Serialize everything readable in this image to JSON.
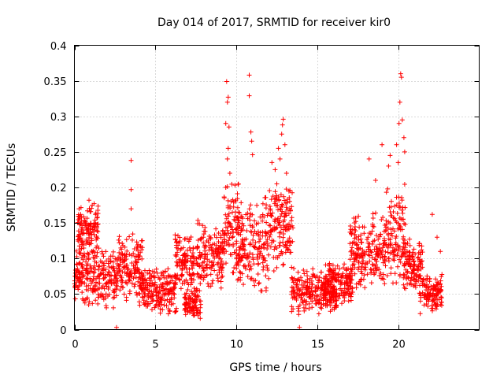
{
  "chart_data": {
    "type": "scatter",
    "title": "Day 014 of 2017, SRMTID for receiver kir0",
    "xlabel": "GPS time / hours",
    "ylabel": "SRMTID / TECUs",
    "xlim": [
      0,
      25
    ],
    "ylim": [
      0,
      0.4
    ],
    "xticks": [
      0,
      5,
      10,
      15,
      20
    ],
    "xtick_labels": [
      "0",
      "5",
      "10",
      "15",
      "20"
    ],
    "yticks": [
      0,
      0.05,
      0.1,
      0.15,
      0.2,
      0.25,
      0.3,
      0.35,
      0.4
    ],
    "ytick_labels": [
      "0",
      "0.05",
      "0.1",
      "0.15",
      "0.2",
      "0.25",
      "0.3",
      "0.35",
      "0.4"
    ],
    "grid": true,
    "marker": "+",
    "color": "#ff0000",
    "data_ranges": [
      {
        "x0": 0.0,
        "x1": 2.7,
        "y0": 0.03,
        "y1": 0.12
      },
      {
        "x0": 0.2,
        "x1": 1.5,
        "y0": 0.1,
        "y1": 0.18
      },
      {
        "x0": 2.7,
        "x1": 4.2,
        "y0": 0.04,
        "y1": 0.14
      },
      {
        "x0": 4.0,
        "x1": 6.3,
        "y0": 0.02,
        "y1": 0.09
      },
      {
        "x0": 6.2,
        "x1": 7.4,
        "y0": 0.04,
        "y1": 0.14
      },
      {
        "x0": 6.8,
        "x1": 7.8,
        "y0": 0.01,
        "y1": 0.06
      },
      {
        "x0": 7.5,
        "x1": 9.2,
        "y0": 0.05,
        "y1": 0.16
      },
      {
        "x0": 9.2,
        "x1": 10.2,
        "y0": 0.06,
        "y1": 0.22
      },
      {
        "x0": 10.0,
        "x1": 12.0,
        "y0": 0.05,
        "y1": 0.19
      },
      {
        "x0": 12.0,
        "x1": 13.5,
        "y0": 0.08,
        "y1": 0.22
      },
      {
        "x0": 13.4,
        "x1": 16.2,
        "y0": 0.02,
        "y1": 0.09
      },
      {
        "x0": 15.5,
        "x1": 17.2,
        "y0": 0.03,
        "y1": 0.1
      },
      {
        "x0": 17.0,
        "x1": 19.2,
        "y0": 0.05,
        "y1": 0.17
      },
      {
        "x0": 19.2,
        "x1": 20.5,
        "y0": 0.06,
        "y1": 0.21
      },
      {
        "x0": 20.3,
        "x1": 21.5,
        "y0": 0.05,
        "y1": 0.13
      },
      {
        "x0": 21.3,
        "x1": 22.7,
        "y0": 0.02,
        "y1": 0.08
      }
    ],
    "points": [
      [
        3.5,
        0.238
      ],
      [
        3.5,
        0.197
      ],
      [
        3.5,
        0.17
      ],
      [
        0.9,
        0.182
      ],
      [
        1.1,
        0.175
      ],
      [
        1.3,
        0.162
      ],
      [
        9.4,
        0.349
      ],
      [
        9.5,
        0.327
      ],
      [
        9.45,
        0.32
      ],
      [
        9.35,
        0.29
      ],
      [
        9.55,
        0.285
      ],
      [
        9.5,
        0.255
      ],
      [
        9.45,
        0.24
      ],
      [
        9.6,
        0.22
      ],
      [
        9.35,
        0.2
      ],
      [
        10.8,
        0.358
      ],
      [
        10.8,
        0.329
      ],
      [
        10.9,
        0.278
      ],
      [
        10.95,
        0.265
      ],
      [
        11.0,
        0.246
      ],
      [
        12.2,
        0.235
      ],
      [
        12.4,
        0.225
      ],
      [
        12.6,
        0.255
      ],
      [
        12.8,
        0.275
      ],
      [
        12.9,
        0.296
      ],
      [
        12.85,
        0.288
      ],
      [
        13.0,
        0.26
      ],
      [
        12.7,
        0.24
      ],
      [
        13.1,
        0.22
      ],
      [
        12.5,
        0.205
      ],
      [
        18.2,
        0.24
      ],
      [
        18.6,
        0.21
      ],
      [
        19.0,
        0.26
      ],
      [
        19.4,
        0.23
      ],
      [
        19.5,
        0.245
      ],
      [
        19.9,
        0.26
      ],
      [
        20.05,
        0.29
      ],
      [
        20.1,
        0.32
      ],
      [
        20.15,
        0.36
      ],
      [
        20.2,
        0.355
      ],
      [
        20.25,
        0.295
      ],
      [
        20.35,
        0.27
      ],
      [
        20.4,
        0.25
      ],
      [
        20.0,
        0.235
      ],
      [
        22.1,
        0.162
      ],
      [
        22.4,
        0.13
      ],
      [
        22.6,
        0.11
      ],
      [
        2.6,
        0.003
      ],
      [
        13.9,
        0.003
      ]
    ]
  }
}
